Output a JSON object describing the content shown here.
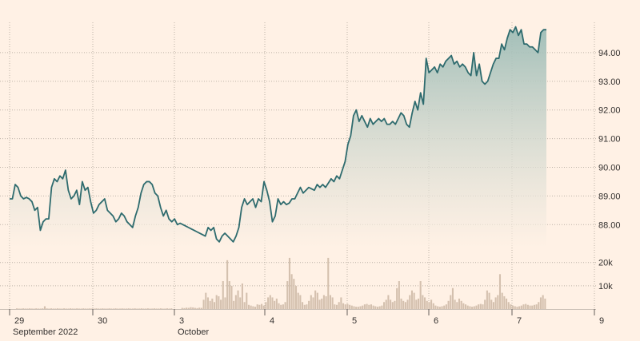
{
  "chart_data": [
    {
      "type": "area",
      "role": "price",
      "y_ticks": [
        88.0,
        89.0,
        90.0,
        91.0,
        92.0,
        93.0,
        94.0
      ],
      "y_tick_labels": [
        "88.00",
        "89.00",
        "90.00",
        "91.00",
        "92.00",
        "93.00",
        "94.00"
      ],
      "ylim": [
        87.2,
        95.0
      ],
      "x_tick_labels": [
        "29",
        "30",
        "3",
        "4",
        "5",
        "6",
        "7",
        "9"
      ],
      "x_sub_labels": [
        "September 2022",
        "October"
      ],
      "grid": true,
      "line_color": "#2e6b6e",
      "fill_top": "#9dbcb6",
      "fill_bottom": "#fff1e5",
      "series": [
        {
          "values": [
            88.9,
            88.9,
            89.4,
            89.3,
            89.0,
            88.9,
            88.95,
            88.9,
            88.8,
            88.5,
            88.6,
            87.8,
            88.1,
            88.2,
            88.2,
            89.3,
            89.6,
            89.5,
            89.7,
            89.6,
            89.9,
            89.2,
            88.9,
            89.0,
            89.2,
            88.7,
            89.5,
            89.2,
            89.3,
            88.8,
            88.4,
            88.5,
            88.7,
            88.8,
            88.9,
            88.5,
            88.4,
            88.3,
            88.1,
            88.2,
            88.4,
            88.3,
            88.1,
            88.0,
            87.9,
            88.3,
            88.6,
            89.1,
            89.4,
            89.5,
            89.5,
            89.4,
            89.1,
            89.0,
            88.6,
            88.3,
            88.5,
            88.2,
            88.1,
            88.2,
            88.0,
            88.05,
            88.0,
            87.95,
            87.9,
            87.85,
            87.8,
            87.75,
            87.7,
            87.65,
            87.6,
            87.9,
            87.8,
            87.9,
            87.5,
            87.4,
            87.6,
            87.7,
            87.6,
            87.5,
            87.4,
            87.6,
            87.9,
            88.6,
            88.9,
            88.7,
            88.8,
            88.9,
            88.6,
            88.9,
            88.8,
            89.5,
            89.2,
            88.8,
            88.1,
            88.3,
            88.9,
            88.7,
            88.8,
            88.7,
            88.75,
            88.9,
            88.9,
            89.1,
            89.3,
            89.1,
            89.2,
            89.3,
            89.25,
            89.2,
            89.4,
            89.3,
            89.4,
            89.3,
            89.45,
            89.6,
            89.5,
            89.7,
            89.6,
            89.9,
            90.2,
            90.8,
            91.1,
            91.8,
            92.0,
            91.6,
            91.8,
            91.6,
            91.4,
            91.7,
            91.5,
            91.6,
            91.7,
            91.6,
            91.7,
            91.5,
            91.5,
            91.6,
            91.5,
            91.7,
            91.9,
            91.8,
            91.5,
            91.4,
            91.9,
            92.3,
            92.0,
            92.6,
            92.2,
            93.8,
            93.3,
            93.4,
            93.5,
            93.3,
            93.6,
            93.5,
            93.7,
            93.8,
            93.9,
            93.6,
            93.7,
            93.5,
            93.6,
            93.5,
            93.3,
            93.2,
            94.0,
            93.2,
            93.6,
            93.0,
            92.9,
            93.0,
            93.3,
            93.6,
            93.8,
            93.8,
            94.3,
            94.1,
            94.5,
            94.8,
            94.7,
            94.9,
            94.6,
            94.8,
            94.3,
            94.3,
            94.2,
            94.2,
            94.1,
            94.0,
            94.7,
            94.8,
            94.8
          ]
        }
      ]
    },
    {
      "type": "bar",
      "role": "volume",
      "y_ticks": [
        10000,
        20000
      ],
      "y_tick_labels": [
        "10k",
        "20k"
      ],
      "ylim": [
        0,
        23000
      ],
      "bar_color": "#d4c0ae",
      "baseline_color": "#ccc1b7",
      "values": [
        0,
        0,
        0,
        300,
        200,
        200,
        300,
        200,
        200,
        300,
        200,
        200,
        300,
        200,
        200,
        300,
        1200,
        300,
        200,
        300,
        200,
        200,
        300,
        200,
        200,
        300,
        200,
        200,
        300,
        200,
        200,
        300,
        200,
        200,
        300,
        200,
        200,
        300,
        200,
        200,
        300,
        200,
        200,
        300,
        200,
        200,
        300,
        200,
        200,
        300,
        200,
        200,
        300,
        200,
        200,
        300,
        200,
        200,
        300,
        200,
        200,
        300,
        200,
        200,
        300,
        200,
        200,
        300,
        200,
        200,
        300,
        200,
        200,
        300,
        200,
        300,
        0,
        0,
        0,
        0,
        500,
        400,
        600,
        500,
        800,
        700,
        500,
        400,
        600,
        500,
        4000,
        7000,
        5000,
        3500,
        4500,
        3000,
        6000,
        5500,
        4000,
        12000,
        5000,
        21000,
        12000,
        10000,
        3500,
        6000,
        8000,
        5000,
        11000,
        3000,
        7000,
        1800,
        1500,
        1200,
        1000,
        2000,
        1800,
        2200,
        1500,
        3000,
        5000,
        6000,
        5000,
        3500,
        4500,
        2500,
        1800,
        2000,
        3000,
        12000,
        22000,
        15000,
        13000,
        10000,
        7000,
        6000,
        3000,
        1800,
        2000,
        3500,
        6000,
        5000,
        8000,
        7000,
        4000,
        4500,
        6000,
        5500,
        22000,
        6000,
        5000,
        2000,
        1800,
        3000,
        5000,
        2500,
        2000,
        2200,
        1800,
        1500,
        1200,
        1000,
        1000,
        1200,
        1500,
        2000,
        2200,
        1800,
        2000,
        1500,
        1200,
        1000,
        1200,
        1500,
        3000,
        4000,
        6000,
        4000,
        3000,
        3500,
        9000,
        12000,
        4500,
        3500,
        3000,
        4000,
        6000,
        8000,
        7000,
        4000,
        4500,
        12000,
        6000,
        5000,
        3500,
        3000,
        4000,
        2500,
        1500,
        1200,
        1000,
        1200,
        1500,
        2000,
        3500,
        6000,
        9000,
        4000,
        3000,
        4500,
        3500,
        2500,
        2000,
        1500,
        1200,
        1000,
        1200,
        1500,
        2000,
        2200,
        2000,
        4000,
        8000,
        7000,
        4000,
        3000,
        5000,
        6000,
        15000,
        7000,
        5500,
        4500,
        3000,
        2000,
        1500,
        1200,
        1000,
        1200,
        1500,
        2000,
        2200,
        1800,
        1500,
        1500,
        1800,
        2000,
        3000,
        5000,
        6000,
        4500
      ]
    }
  ]
}
